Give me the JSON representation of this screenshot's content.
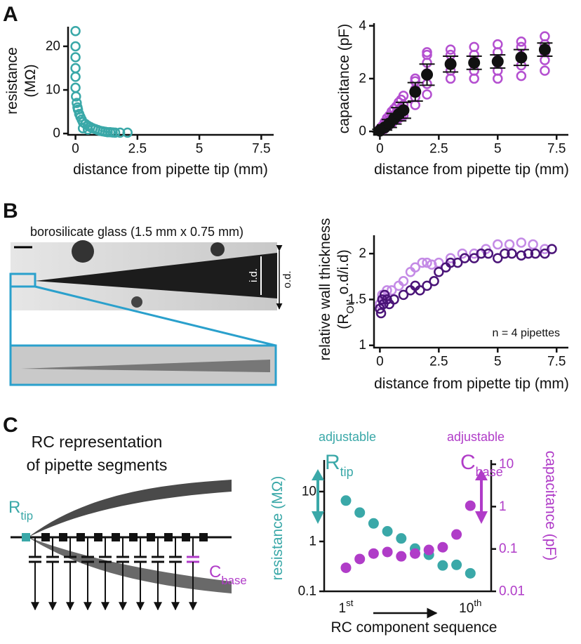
{
  "panels": {
    "labels": [
      "A",
      "B",
      "C"
    ]
  },
  "micrograph": {
    "caption": "borosilicate glass (1.5 mm x 0.75 mm)",
    "id_label": "i.d.",
    "od_label": "o.d."
  },
  "diagram": {
    "title": [
      "RC representation",
      "of pipette segments"
    ],
    "r_label": {
      "main": "R",
      "sub": "tip"
    },
    "c_label": {
      "main": "C",
      "sub": "base"
    }
  },
  "chart_data": [
    {
      "type": "scatter",
      "x_label": "distance from pipette tip (mm)",
      "y_label": [
        "resistance",
        "(MΩ)"
      ],
      "xlim": [
        -0.3,
        8
      ],
      "ylim": [
        -0.3,
        24.5
      ],
      "xticks": [
        0,
        2.5,
        5,
        7.5
      ],
      "yticks": [
        0,
        10,
        20
      ],
      "series": [
        {
          "color": "#3aa8a8",
          "marker": "open",
          "x": [
            0,
            0,
            0,
            0,
            0,
            0,
            0.02,
            0.05,
            0.08,
            0.1,
            0.15,
            0.2,
            0.25,
            0.3,
            0.4,
            0.5,
            0.6,
            0.7,
            0.8,
            0.9,
            1.0,
            1.1,
            1.2,
            1.3,
            1.4,
            1.5,
            1.6,
            1.8,
            2.1,
            0.3,
            0.5
          ],
          "values": [
            23.5,
            20,
            17.5,
            15,
            13,
            10.5,
            8.5,
            7,
            6,
            5.5,
            4.5,
            3.8,
            3.2,
            2.6,
            2.2,
            1.8,
            1.5,
            1.2,
            1,
            0.8,
            0.6,
            0.5,
            0.4,
            0.3,
            0.3,
            0.25,
            0.2,
            0.2,
            0.2,
            1.2,
            0.9
          ]
        }
      ]
    },
    {
      "type": "scatter",
      "x_label": "distance from pipette tip (mm)",
      "y_label": [
        "capacitance (pF)"
      ],
      "xlim": [
        -0.25,
        8
      ],
      "ylim": [
        -0.13,
        4.1
      ],
      "xticks": [
        0,
        2.5,
        5,
        7.5
      ],
      "yticks": [
        0,
        2,
        4
      ],
      "series": [
        {
          "color": "#b44fd0",
          "marker": "open",
          "x": [
            0,
            0,
            0,
            0.1,
            0.1,
            0.1,
            0.2,
            0.2,
            0.2,
            0.3,
            0.3,
            0.3,
            0.4,
            0.4,
            0.4,
            0.5,
            0.5,
            0.5,
            0.6,
            0.6,
            0.6,
            0.7,
            0.7,
            0.7,
            0.8,
            0.8,
            0.8,
            0.9,
            0.9,
            0.9,
            1.0,
            1.0,
            1.0,
            1.5,
            1.5,
            1.5,
            1.5,
            1.5,
            2,
            2,
            2,
            2,
            2,
            2,
            3,
            3,
            3,
            3,
            3,
            4,
            4,
            4,
            4,
            4,
            5,
            5,
            5,
            5,
            5,
            6,
            6,
            6,
            6,
            6,
            7,
            7,
            7,
            7,
            7
          ],
          "values": [
            0,
            0.05,
            0.1,
            0.05,
            0.15,
            0.2,
            0.1,
            0.25,
            0.35,
            0.2,
            0.35,
            0.5,
            0.25,
            0.45,
            0.6,
            0.3,
            0.55,
            0.75,
            0.4,
            0.6,
            0.85,
            0.45,
            0.7,
            0.95,
            0.5,
            0.8,
            1.1,
            0.55,
            0.9,
            1.2,
            0.6,
            1.0,
            1.35,
            1.0,
            1.3,
            1.6,
            1.9,
            2.0,
            1.4,
            1.8,
            2.2,
            2.6,
            2.9,
            3.0,
            2.0,
            2.3,
            2.6,
            2.9,
            3.1,
            2.0,
            2.3,
            2.6,
            2.9,
            3.2,
            2.0,
            2.3,
            2.6,
            3.0,
            3.3,
            2.1,
            2.5,
            2.8,
            3.2,
            3.4,
            2.3,
            2.7,
            3.0,
            3.3,
            3.6
          ]
        },
        {
          "color": "#111111",
          "marker": "filled",
          "x": [
            0,
            0.2,
            0.4,
            0.6,
            0.8,
            1,
            1.5,
            2,
            3,
            4,
            5,
            6,
            7
          ],
          "values": [
            0.03,
            0.15,
            0.3,
            0.48,
            0.65,
            0.8,
            1.5,
            2.15,
            2.55,
            2.6,
            2.65,
            2.8,
            3.1
          ],
          "errors": [
            0.05,
            0.1,
            0.15,
            0.2,
            0.25,
            0.3,
            0.35,
            0.4,
            0.3,
            0.25,
            0.25,
            0.3,
            0.25
          ]
        }
      ]
    },
    {
      "type": "scatter",
      "x_label": "distance from pipette tip (mm)",
      "y_label": [
        "relative wall thickness",
        [
          "(R",
          "OI",
          ", o.d/i.d)"
        ]
      ],
      "annotation": "n = 4 pipettes",
      "xlim": [
        -0.25,
        8
      ],
      "ylim": [
        0.975,
        2.2
      ],
      "xticks": [
        0,
        2.5,
        5,
        7.5
      ],
      "yticks": [
        1,
        1.5,
        2
      ],
      "series": [
        {
          "color": "#c48ae6",
          "marker": "open",
          "x": [
            0,
            0.1,
            0.2,
            0.3,
            0.5,
            0.8,
            1,
            1.3,
            1.5,
            1.8,
            2,
            2.2,
            2.5,
            3,
            3.5,
            4,
            4.5,
            5,
            5.5,
            6,
            6.5,
            7
          ],
          "values": [
            1.45,
            1.55,
            1.5,
            1.6,
            1.6,
            1.65,
            1.7,
            1.8,
            1.85,
            1.9,
            1.9,
            1.88,
            1.9,
            1.95,
            2.0,
            2.0,
            2.05,
            2.1,
            2.1,
            2.12,
            2.1,
            2.05
          ]
        },
        {
          "color": "#4a1478",
          "marker": "open",
          "x": [
            0,
            0.05,
            0.1,
            0.15,
            0.2,
            0.3,
            0.4,
            0.6,
            1,
            1.3,
            1.5,
            1.7,
            2,
            2.3,
            2.5,
            2.8,
            3,
            3.3,
            3.6,
            4,
            4.3,
            4.6,
            5,
            5.3,
            5.6,
            6,
            6.3,
            6.6,
            7,
            7.3
          ],
          "values": [
            1.4,
            1.35,
            1.5,
            1.45,
            1.55,
            1.5,
            1.45,
            1.5,
            1.55,
            1.6,
            1.65,
            1.6,
            1.65,
            1.7,
            1.8,
            1.85,
            1.9,
            1.9,
            1.95,
            1.95,
            2.0,
            2.0,
            1.95,
            2.0,
            2.0,
            1.98,
            2.0,
            2.0,
            2.0,
            2.05
          ]
        }
      ]
    },
    {
      "type": "dot",
      "log": true,
      "x_label": "RC component sequence",
      "y_label": [
        "resistance (MΩ)"
      ],
      "y2_label": "capacitance (pF)",
      "y_label_color": "#3aa8a8",
      "y2_color": "#b03cc8",
      "categories": [
        "1st",
        null,
        null,
        null,
        null,
        null,
        null,
        null,
        null,
        "10th"
      ],
      "ylim": [
        0.1,
        43
      ],
      "yticks": [
        0.1,
        1,
        10
      ],
      "y2lim": [
        0.01,
        12.6
      ],
      "y2ticks": [
        0.01,
        0.1,
        1,
        10
      ],
      "annotations": [
        {
          "text": "adjustable",
          "main": "R",
          "sub": "tip",
          "color": "#3aa8a8"
        },
        {
          "text": "adjustable",
          "main": "C",
          "sub": "base",
          "color": "#b03cc8"
        }
      ],
      "series": [
        {
          "color": "#3aa8a8",
          "values": [
            6.6,
            3.8,
            2.3,
            1.6,
            1.15,
            0.72,
            0.54,
            0.33,
            0.34,
            0.23
          ]
        },
        {
          "color": "#b03cc8",
          "axis": "y2",
          "values": [
            0.036,
            0.058,
            0.078,
            0.085,
            0.067,
            0.078,
            0.095,
            0.11,
            0.22,
            1.05
          ]
        }
      ]
    }
  ]
}
